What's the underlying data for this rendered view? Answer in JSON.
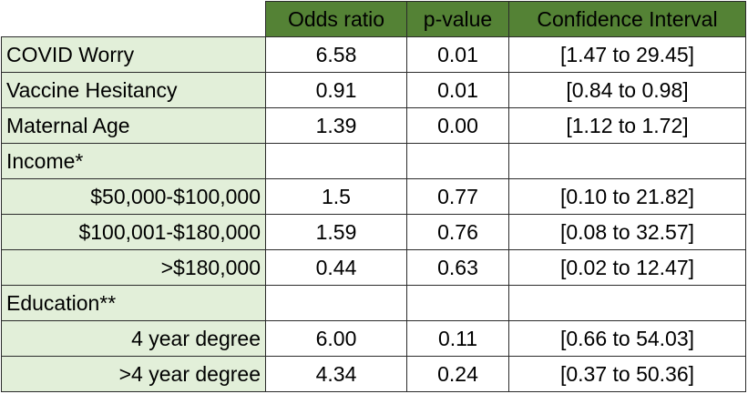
{
  "columns": [
    "Odds ratio",
    "p-value",
    "Confidence Interval"
  ],
  "rows": [
    {
      "label": "COVID Worry",
      "indent": false,
      "odds_ratio": "6.58",
      "p_value": "0.01",
      "ci": "[1.47 to 29.45]"
    },
    {
      "label": "Vaccine Hesitancy",
      "indent": false,
      "odds_ratio": "0.91",
      "p_value": "0.01",
      "ci": "[0.84 to 0.98]"
    },
    {
      "label": "Maternal Age",
      "indent": false,
      "odds_ratio": "1.39",
      "p_value": "0.00",
      "ci": "[1.12 to 1.72]"
    },
    {
      "label": "Income*",
      "indent": false,
      "odds_ratio": "",
      "p_value": "",
      "ci": ""
    },
    {
      "label": "$50,000-$100,000",
      "indent": true,
      "odds_ratio": "1.5",
      "p_value": "0.77",
      "ci": "[0.10 to 21.82]"
    },
    {
      "label": "$100,001-$180,000",
      "indent": true,
      "odds_ratio": "1.59",
      "p_value": "0.76",
      "ci": "[0.08 to 32.57]"
    },
    {
      "label": ">$180,000",
      "indent": true,
      "odds_ratio": "0.44",
      "p_value": "0.63",
      "ci": "[0.02 to 12.47]"
    },
    {
      "label": "Education**",
      "indent": false,
      "odds_ratio": "",
      "p_value": "",
      "ci": ""
    },
    {
      "label": "4 year degree",
      "indent": true,
      "odds_ratio": "6.00",
      "p_value": "0.11",
      "ci": "[0.66 to 54.03]"
    },
    {
      "label": ">4 year degree",
      "indent": true,
      "odds_ratio": "4.34",
      "p_value": "0.24",
      "ci": "[0.37 to 50.36]"
    }
  ],
  "colors": {
    "header": "#548235",
    "label_fill": "#e2efd9"
  }
}
